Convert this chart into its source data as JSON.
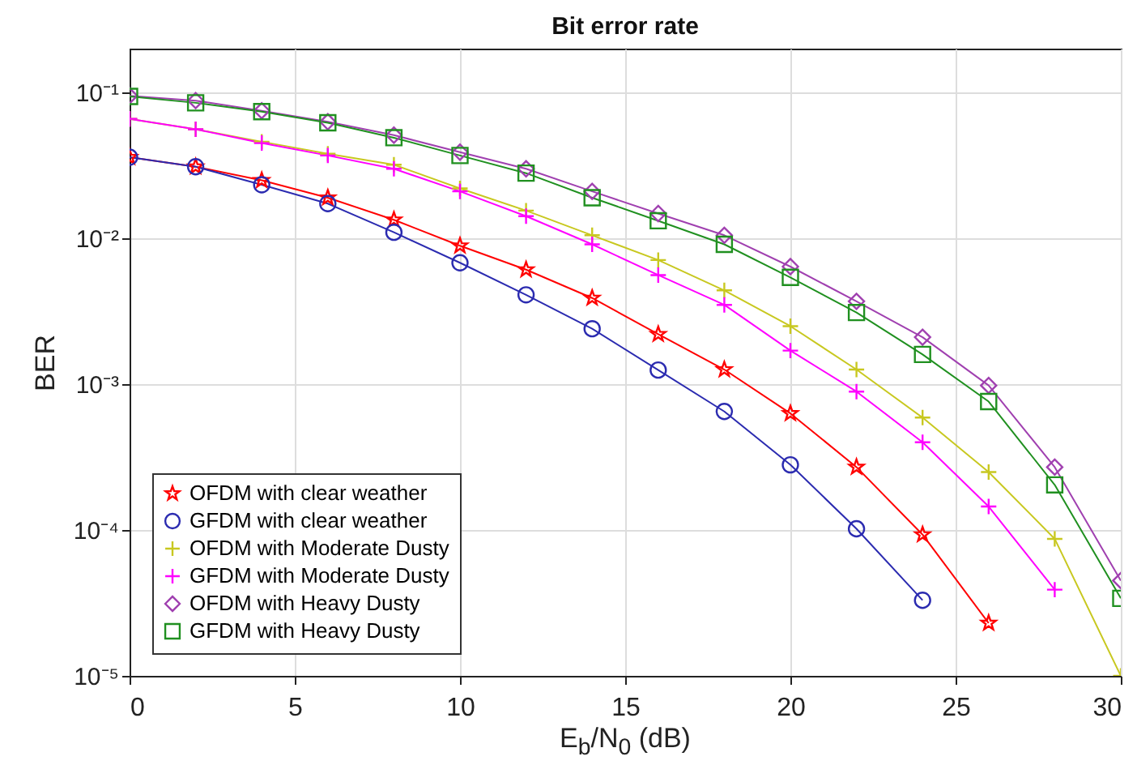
{
  "chart_data": {
    "type": "line",
    "title": "Bit error rate",
    "xlabel": "E$_{b}$/N$_{0}$ (dB)",
    "ylabel": "BER",
    "x": [
      0,
      2,
      4,
      6,
      8,
      10,
      12,
      14,
      16,
      18,
      20,
      22,
      24,
      26,
      28,
      30
    ],
    "series": [
      {
        "name": "OFDM with clear weather",
        "color": "#ff0000",
        "marker": "star",
        "values": [
          0.036,
          0.031,
          0.025,
          0.019,
          0.0134,
          0.0089,
          0.0061,
          0.0039,
          0.0022,
          0.00126,
          0.00063,
          0.00027,
          9.3e-05,
          2.3e-05,
          null,
          null
        ]
      },
      {
        "name": "GFDM with clear weather",
        "color": "#2b2bb0",
        "marker": "circle",
        "values": [
          0.036,
          0.031,
          0.0233,
          0.0173,
          0.011,
          0.0068,
          0.0041,
          0.0024,
          0.00125,
          0.00065,
          0.00028,
          0.000102,
          3.3e-05,
          null,
          null,
          null
        ]
      },
      {
        "name": "OFDM with Moderate Dusty",
        "color": "#c8c820",
        "marker": "cross",
        "values": [
          0.066,
          0.056,
          0.046,
          0.038,
          0.032,
          0.022,
          0.0155,
          0.0105,
          0.0071,
          0.0044,
          0.0025,
          0.00126,
          0.00059,
          0.00025,
          8.7e-05,
          1e-05
        ]
      },
      {
        "name": "GFDM with Moderate Dusty",
        "color": "#ff00ff",
        "marker": "cross",
        "values": [
          0.066,
          0.056,
          0.045,
          0.037,
          0.03,
          0.021,
          0.0142,
          0.0091,
          0.0056,
          0.0035,
          0.0017,
          0.00089,
          0.0004,
          0.000145,
          3.9e-05,
          null
        ]
      },
      {
        "name": "OFDM with Heavy Dusty",
        "color": "#a040b0",
        "marker": "diamond",
        "values": [
          0.095,
          0.088,
          0.075,
          0.063,
          0.051,
          0.039,
          0.03,
          0.021,
          0.0148,
          0.0105,
          0.0064,
          0.0037,
          0.0021,
          0.00098,
          0.00027,
          4.5e-05
        ]
      },
      {
        "name": "GFDM with Heavy Dusty",
        "color": "#209020",
        "marker": "square",
        "values": [
          0.094,
          0.085,
          0.074,
          0.062,
          0.049,
          0.037,
          0.028,
          0.019,
          0.0132,
          0.0091,
          0.0054,
          0.0031,
          0.0016,
          0.00076,
          0.000204,
          3.4e-05
        ]
      }
    ],
    "xlim": [
      0,
      30
    ],
    "xticks": [
      0,
      5,
      10,
      15,
      20,
      25,
      30
    ],
    "log": true,
    "ylim": [
      1e-05,
      0.2
    ],
    "yticks": [
      {
        "value": 1e-05,
        "label": "10⁻⁵"
      },
      {
        "value": 0.0001,
        "label": "10⁻⁴"
      },
      {
        "value": 0.001,
        "label": "10⁻³"
      },
      {
        "value": 0.01,
        "label": "10⁻²"
      },
      {
        "value": 0.1,
        "label": "10⁻¹"
      }
    ],
    "grid": true,
    "legend": "bottom left",
    "line_style": "solid"
  }
}
